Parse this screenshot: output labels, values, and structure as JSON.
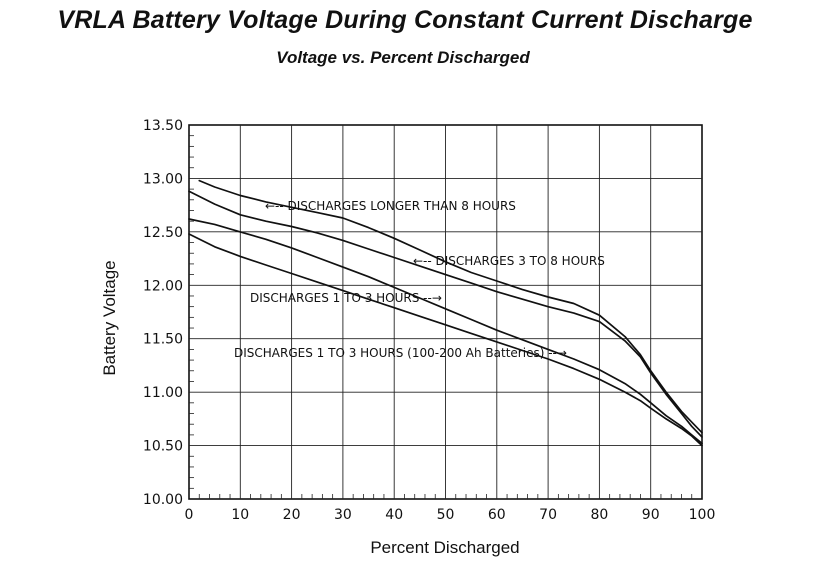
{
  "chart_data": {
    "type": "line",
    "title": "VRLA Battery Voltage During Constant Current Discharge",
    "subtitle": "Voltage vs. Percent Discharged",
    "xlabel": "Percent Discharged",
    "ylabel": "Battery Voltage",
    "xlim": [
      0,
      100
    ],
    "ylim": [
      10.0,
      13.5
    ],
    "xticks": [
      "0",
      "10",
      "20",
      "30",
      "40",
      "50",
      "60",
      "70",
      "80",
      "90",
      "100"
    ],
    "yticks": [
      "10.00",
      "10.50",
      "11.00",
      "11.50",
      "12.00",
      "12.50",
      "13.00",
      "13.50"
    ],
    "grid": true,
    "series": [
      {
        "name": "DISCHARGES LONGER THAN 8 HOURS",
        "x": [
          2,
          5,
          10,
          15,
          20,
          25,
          30,
          35,
          40,
          45,
          50,
          55,
          60,
          65,
          70,
          75,
          80,
          85,
          88,
          90,
          93,
          96,
          98,
          100
        ],
        "y": [
          12.98,
          12.92,
          12.84,
          12.78,
          12.73,
          12.68,
          12.63,
          12.54,
          12.44,
          12.33,
          12.22,
          12.12,
          12.04,
          11.96,
          11.89,
          11.83,
          11.72,
          11.52,
          11.35,
          11.2,
          11.0,
          10.82,
          10.72,
          10.62
        ]
      },
      {
        "name": "DISCHARGES 3 TO 8 HOURS",
        "x": [
          0,
          5,
          10,
          15,
          20,
          25,
          30,
          35,
          40,
          45,
          50,
          55,
          60,
          65,
          70,
          75,
          80,
          85,
          88,
          90,
          93,
          96,
          98,
          100
        ],
        "y": [
          12.88,
          12.76,
          12.66,
          12.6,
          12.55,
          12.49,
          12.42,
          12.34,
          12.26,
          12.18,
          12.1,
          12.02,
          11.94,
          11.87,
          11.8,
          11.74,
          11.66,
          11.48,
          11.33,
          11.18,
          10.98,
          10.8,
          10.68,
          10.58
        ]
      },
      {
        "name": "DISCHARGES 1 TO 3 HOURS",
        "x": [
          0,
          5,
          10,
          15,
          20,
          25,
          30,
          35,
          40,
          45,
          50,
          55,
          60,
          65,
          70,
          75,
          80,
          85,
          88,
          90,
          93,
          96,
          98,
          100
        ],
        "y": [
          12.62,
          12.57,
          12.5,
          12.43,
          12.35,
          12.26,
          12.17,
          12.08,
          11.98,
          11.88,
          11.78,
          11.68,
          11.58,
          11.49,
          11.4,
          11.31,
          11.21,
          11.08,
          10.98,
          10.9,
          10.78,
          10.68,
          10.6,
          10.52
        ]
      },
      {
        "name": "DISCHARGES 1 TO 3 HOURS (100-200 Ah Batteries)",
        "x": [
          0,
          5,
          10,
          15,
          20,
          25,
          30,
          35,
          40,
          45,
          50,
          55,
          60,
          65,
          70,
          75,
          80,
          85,
          88,
          90,
          93,
          96,
          98,
          100
        ],
        "y": [
          12.48,
          12.36,
          12.27,
          12.19,
          12.11,
          12.03,
          11.95,
          11.87,
          11.79,
          11.71,
          11.63,
          11.55,
          11.47,
          11.39,
          11.31,
          11.22,
          11.12,
          11.0,
          10.92,
          10.85,
          10.75,
          10.66,
          10.59,
          10.5
        ]
      }
    ],
    "annotations": [
      {
        "text": "←-- DISCHARGES LONGER THAN 8 HOURS",
        "series": 0,
        "points_to": [
          15,
          12.76
        ]
      },
      {
        "text": "←-- DISCHARGES 3 TO 8 HOURS",
        "series": 1,
        "points_to": [
          44,
          12.24
        ]
      },
      {
        "text": "DISCHARGES 1 TO 3 HOURS --→",
        "series": 2,
        "points_to": [
          49,
          11.8
        ]
      },
      {
        "text": "DISCHARGES 1 TO 3 HOURS (100-200 Ah Batteries) --→",
        "series": 3,
        "points_to": [
          73,
          11.26
        ]
      }
    ]
  }
}
